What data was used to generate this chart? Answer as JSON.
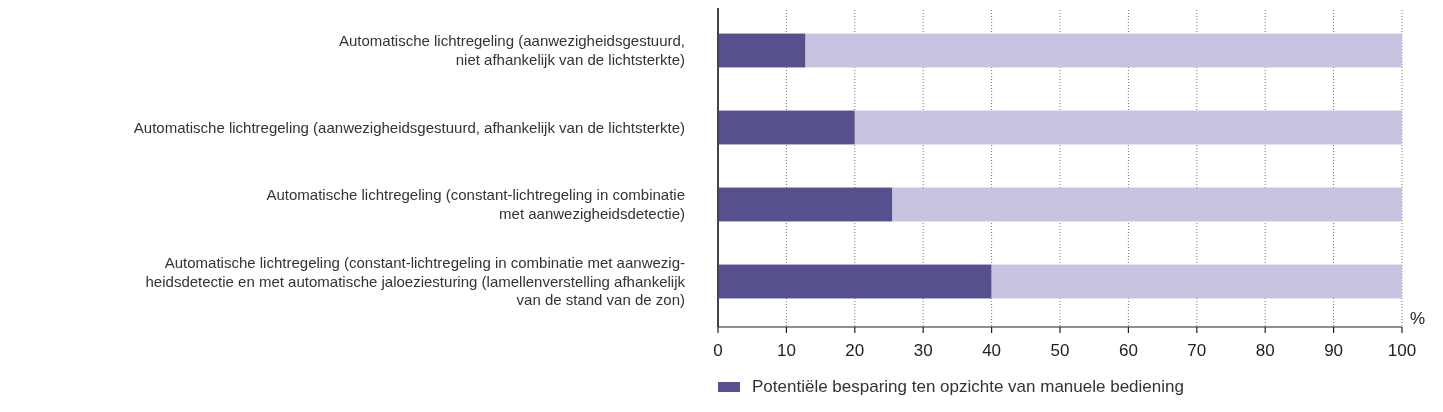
{
  "chart_data": {
    "type": "bar",
    "orientation": "horizontal",
    "stacked": true,
    "categories": [
      "Automatische lichtregeling (aanwezigheidsgestuurd,\nniet afhankelijk van de lichtsterkte)",
      "Automatische lichtregeling (aanwezigheidsgestuurd, afhankelijk van de lichtsterkte)",
      "Automatische lichtregeling (constant-lichtregeling in combinatie\nmet aanwezigheidsdetectie)",
      "Automatische lichtregeling (constant-lichtregeling in combinatie met aanwezig-\nheidsdetectie en met automatische jaloeziesturing (lamellenverstelling afhankelijk\nvan de stand van de zon)"
    ],
    "series": [
      {
        "name": "Potentiële besparing ten opzichte van manuele bediening",
        "color": "#56508f",
        "values": [
          12.8,
          20,
          25.5,
          40
        ]
      },
      {
        "color": "#c7c3e0",
        "values": [
          87.2,
          80,
          74.5,
          60
        ]
      }
    ],
    "xlabel": "%",
    "xlim": [
      0,
      100
    ],
    "xticks": [
      0,
      10,
      20,
      30,
      40,
      50,
      60,
      70,
      80,
      90,
      100
    ],
    "grid": "x",
    "legend": "bottom left"
  }
}
